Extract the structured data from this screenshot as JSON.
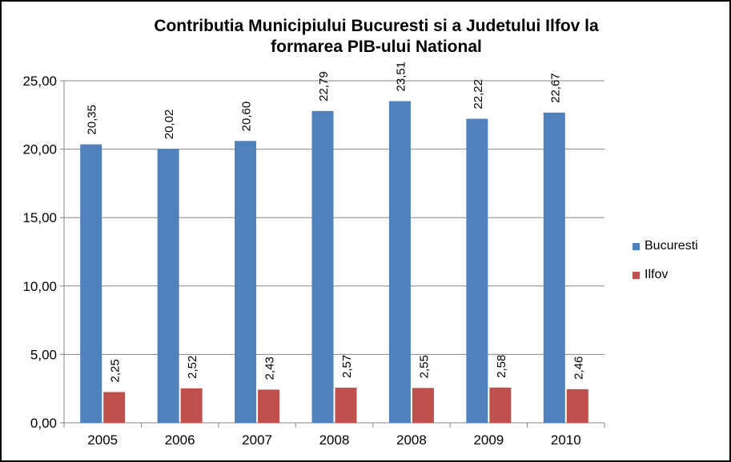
{
  "chart_data": {
    "type": "bar",
    "title_lines": [
      "Contributia Municipiului Bucuresti si a Judetului Ilfov la",
      "formarea PIB-ului National"
    ],
    "categories": [
      "2005",
      "2006",
      "2007",
      "2008",
      "2008",
      "2009",
      "2010"
    ],
    "series": [
      {
        "name": "Bucuresti",
        "color": "#4F81BD",
        "values": [
          20.35,
          20.02,
          20.6,
          22.79,
          23.51,
          22.22,
          22.67
        ],
        "labels": [
          "20,35",
          "20,02",
          "20,60",
          "22,79",
          "23,51",
          "22,22",
          "22,67"
        ]
      },
      {
        "name": "Ilfov",
        "color": "#C0504D",
        "values": [
          2.25,
          2.52,
          2.43,
          2.57,
          2.55,
          2.58,
          2.46
        ],
        "labels": [
          "2,25",
          "2,52",
          "2,43",
          "2,57",
          "2,55",
          "2,58",
          "2,46"
        ]
      }
    ],
    "ylim": [
      0,
      25
    ],
    "yticks": [
      0,
      5,
      10,
      15,
      20,
      25
    ],
    "ytick_labels": [
      "0,00",
      "5,00",
      "10,00",
      "15,00",
      "20,00",
      "25,00"
    ],
    "grid": true,
    "legend": "right"
  }
}
